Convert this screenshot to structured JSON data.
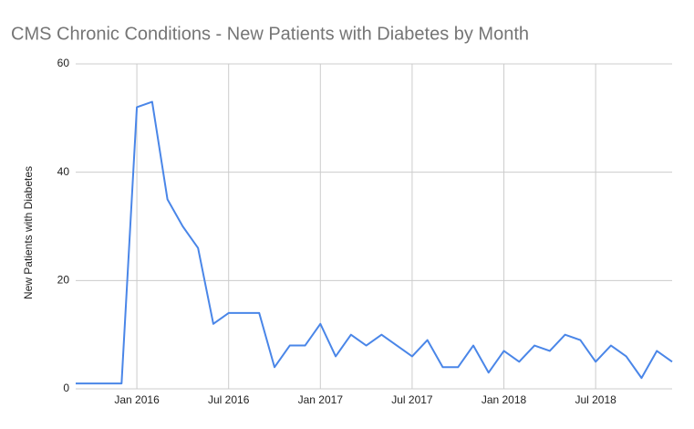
{
  "chart_data": {
    "type": "line",
    "title": "CMS Chronic Conditions - New Patients with Diabetes by Month",
    "y_label": "New Patients with Diabetes",
    "x": [
      "2015-09",
      "2015-10",
      "2015-11",
      "2015-12",
      "2016-01",
      "2016-02",
      "2016-03",
      "2016-04",
      "2016-05",
      "2016-06",
      "2016-07",
      "2016-08",
      "2016-09",
      "2016-10",
      "2016-11",
      "2016-12",
      "2017-01",
      "2017-02",
      "2017-03",
      "2017-04",
      "2017-05",
      "2017-06",
      "2017-07",
      "2017-08",
      "2017-09",
      "2017-10",
      "2017-11",
      "2017-12",
      "2018-01",
      "2018-02",
      "2018-03",
      "2018-04",
      "2018-05",
      "2018-06",
      "2018-07",
      "2018-08",
      "2018-09",
      "2018-10",
      "2018-11",
      "2018-12"
    ],
    "series": [
      {
        "name": "New Patients with Diabetes",
        "color": "#4a86e8",
        "values": [
          1,
          1,
          1,
          1,
          52,
          53,
          35,
          30,
          26,
          12,
          14,
          14,
          14,
          4,
          8,
          8,
          12,
          6,
          10,
          8,
          10,
          8,
          6,
          9,
          4,
          4,
          8,
          3,
          7,
          5,
          8,
          7,
          10,
          9,
          5,
          8,
          6,
          2,
          7,
          5
        ]
      }
    ],
    "xlim": [
      "2015-09",
      "2018-12"
    ],
    "xticks": [
      {
        "value": "2016-01",
        "label": "Jan 2016"
      },
      {
        "value": "2016-07",
        "label": "Jul 2016"
      },
      {
        "value": "2017-01",
        "label": "Jan 2017"
      },
      {
        "value": "2017-07",
        "label": "Jul 2017"
      },
      {
        "value": "2018-01",
        "label": "Jan 2018"
      },
      {
        "value": "2018-07",
        "label": "Jul 2018"
      }
    ],
    "ylim": [
      0,
      60
    ],
    "yticks": [
      0,
      20,
      40,
      60
    ],
    "grid": true
  }
}
